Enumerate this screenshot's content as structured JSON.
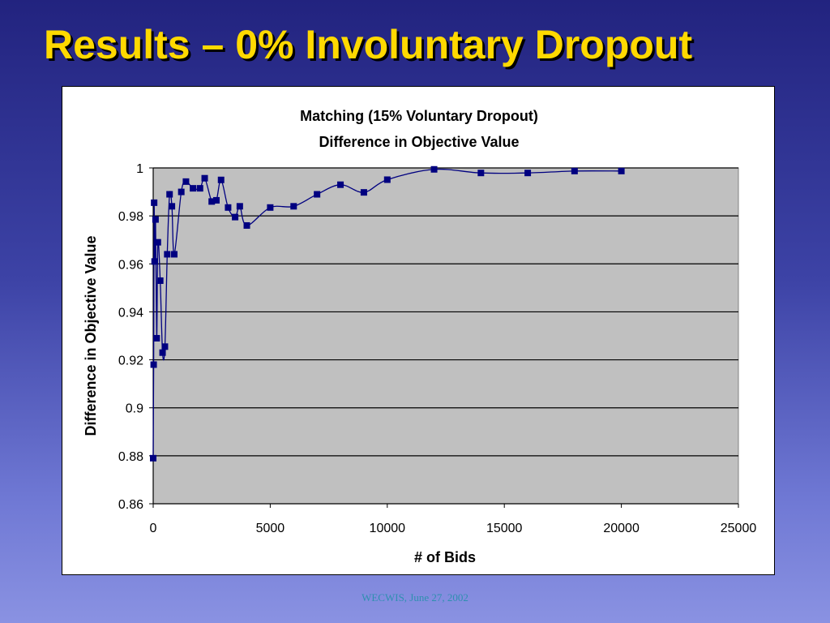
{
  "slide": {
    "title": "Results – 0% Involuntary Dropout",
    "footer": "WECWIS, June 27, 2002"
  },
  "chart_data": {
    "type": "line",
    "title": "Matching (15% Voluntary Dropout)",
    "subtitle": "Difference in Objective Value",
    "xlabel": "# of Bids",
    "ylabel": "Difference in Objective Value",
    "xlim": [
      0,
      25000
    ],
    "ylim": [
      0.86,
      1
    ],
    "xticks": [
      0,
      5000,
      10000,
      15000,
      20000,
      25000
    ],
    "yticks": [
      0.86,
      0.88,
      0.9,
      0.92,
      0.94,
      0.96,
      0.98,
      1
    ],
    "ytick_labels": [
      "0.86",
      "0.88",
      "0.9",
      "0.92",
      "0.94",
      "0.96",
      "0.98",
      "1"
    ],
    "grid": true,
    "plot_background": "#c0c0c0",
    "series": [
      {
        "color": "#000080",
        "marker": "square",
        "x": [
          0,
          20,
          40,
          60,
          100,
          150,
          200,
          300,
          400,
          500,
          600,
          700,
          800,
          900,
          1200,
          1400,
          1700,
          2000,
          2200,
          2500,
          2700,
          2900,
          3200,
          3500,
          3700,
          4000,
          5000,
          6000,
          7000,
          8000,
          9000,
          10000,
          12000,
          14000,
          16000,
          18000,
          20000
        ],
        "y": [
          0.879,
          0.918,
          0.9855,
          0.961,
          0.9785,
          0.929,
          0.969,
          0.953,
          0.923,
          0.9255,
          0.964,
          0.989,
          0.984,
          0.964,
          0.99,
          0.9943,
          0.9915,
          0.9915,
          0.9957,
          0.986,
          0.9865,
          0.995,
          0.9835,
          0.9795,
          0.984,
          0.976,
          0.9835,
          0.984,
          0.989,
          0.993,
          0.9898,
          0.9951,
          0.9994,
          0.9979,
          0.9979,
          0.9987,
          0.9987
        ]
      }
    ]
  }
}
